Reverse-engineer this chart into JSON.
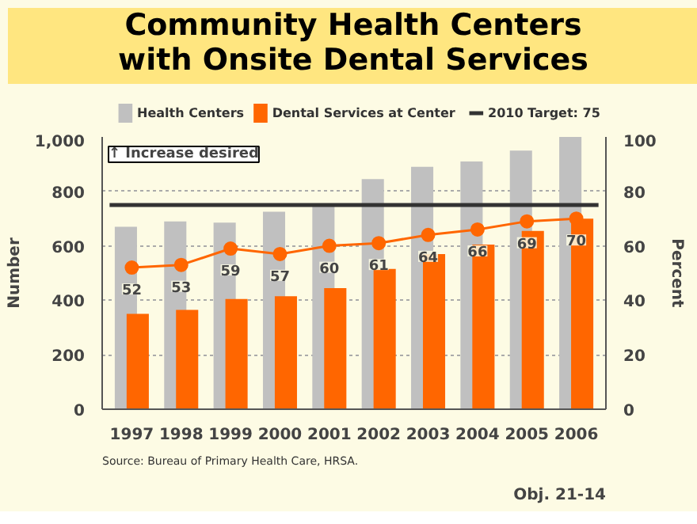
{
  "chart_data": {
    "type": "bar",
    "title": "Community Health Centers\nwith Onsite Dental Services",
    "ylabel": "Number",
    "y2label": "Percent",
    "categories": [
      "1997",
      "1998",
      "1999",
      "2000",
      "2001",
      "2002",
      "2003",
      "2004",
      "2005",
      "2006"
    ],
    "series": [
      {
        "name": "Health Centers",
        "color": "#c0c0c0",
        "values": [
          670,
          690,
          685,
          725,
          748,
          845,
          890,
          910,
          950,
          1000
        ]
      },
      {
        "name": "Dental Services at Center",
        "color": "#ff6600",
        "values": [
          350,
          365,
          405,
          415,
          445,
          515,
          570,
          605,
          655,
          700
        ]
      },
      {
        "type": "line",
        "axis": "y2",
        "color": "#ff6600",
        "marker": "circle",
        "values": [
          52,
          53,
          59,
          57,
          60,
          61,
          64,
          66,
          69,
          70
        ],
        "value_labels": [
          "52",
          "53",
          "59",
          "57",
          "60",
          "61",
          "64",
          "66",
          "69",
          "70"
        ]
      }
    ],
    "ylim": [
      0,
      1000
    ],
    "yticks": [
      0,
      200,
      400,
      600,
      800,
      {
        "value": 1000,
        "label": "1,000"
      }
    ],
    "y2lim": [
      0,
      100
    ],
    "y2ticks": [
      0,
      20,
      40,
      60,
      80,
      100
    ],
    "ref_lines": [
      {
        "axis": "y2",
        "value": 75,
        "label": "2010 Target: 75",
        "color": "#333333"
      }
    ],
    "annotations": [
      "↑ Increase desired",
      "Source: Bureau of Primary Health Care, HRSA.",
      "Obj. 21-14"
    ],
    "grid": "y",
    "legend": "top"
  }
}
